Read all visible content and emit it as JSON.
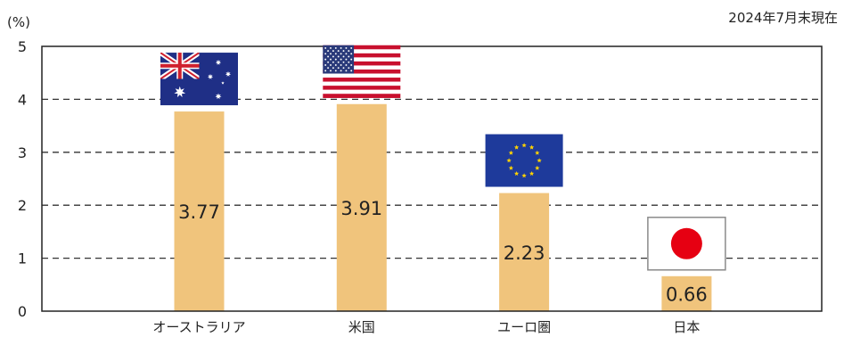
{
  "colors": {
    "bar": "#F0C47C",
    "text": "#222222",
    "grid": "#333333",
    "frame": "#222222"
  },
  "chart_data": {
    "type": "bar",
    "categories": [
      "オーストラリア",
      "米国",
      "ユーロ圏",
      "日本"
    ],
    "values": [
      3.77,
      3.91,
      2.23,
      0.66
    ],
    "ylabel": "(%)",
    "ylim": [
      0,
      5
    ],
    "yticks": [
      0,
      1,
      2,
      3,
      4,
      5
    ],
    "grid": true,
    "annotation": "2024年7月末現在",
    "category_icons": [
      "australia-flag-icon",
      "us-flag-icon",
      "eu-flag-icon",
      "japan-flag-icon"
    ]
  }
}
